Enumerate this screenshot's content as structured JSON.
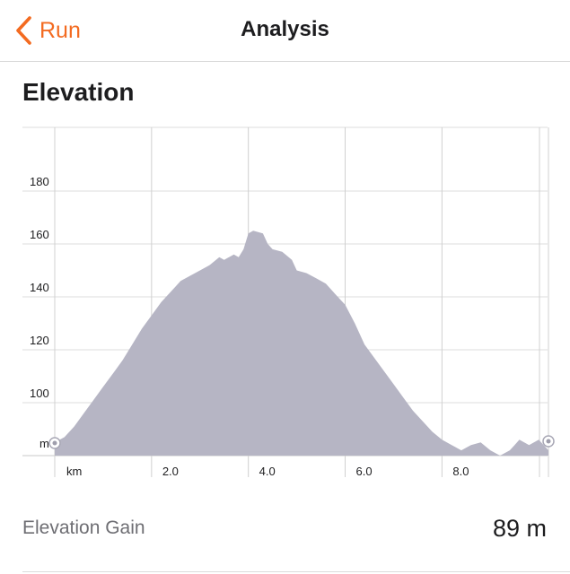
{
  "nav": {
    "back_label": "Run",
    "title": "Analysis",
    "accent_color": "#f36b21",
    "back_icon": "chevron-left-icon"
  },
  "section": {
    "title": "Elevation"
  },
  "chart_data": {
    "type": "area",
    "title": "",
    "xlabel": "km",
    "ylabel": "m",
    "x_unit_label": "km",
    "y_unit_label": "m",
    "xlim": [
      0,
      10.2
    ],
    "ylim": [
      80,
      200
    ],
    "y_ticks": [
      100,
      120,
      140,
      160,
      180
    ],
    "y_tick_labels": [
      "100",
      "120",
      "140",
      "160",
      "180"
    ],
    "x_ticks": [
      2.0,
      4.0,
      6.0,
      8.0
    ],
    "x_tick_labels": [
      "2.0",
      "4.0",
      "6.0",
      "8.0"
    ],
    "grid": true,
    "fill_color": "#b6b5c4",
    "series": [
      {
        "x": [
          0.0,
          0.2,
          0.4,
          0.6,
          0.8,
          1.0,
          1.2,
          1.4,
          1.6,
          1.8,
          2.0,
          2.2,
          2.4,
          2.5,
          2.6,
          2.8,
          3.0,
          3.2,
          3.4,
          3.5,
          3.7,
          3.8,
          3.9,
          4.0,
          4.1,
          4.3,
          4.4,
          4.5,
          4.7,
          4.9,
          5.0,
          5.2,
          5.4,
          5.6,
          5.8,
          6.0,
          6.2,
          6.4,
          6.6,
          6.8,
          7.0,
          7.2,
          7.4,
          7.6,
          7.8,
          8.0,
          8.2,
          8.4,
          8.6,
          8.8,
          9.0,
          9.2,
          9.4,
          9.5,
          9.6,
          9.8,
          10.0,
          10.2
        ],
        "y": [
          85,
          87,
          91,
          96,
          101,
          106,
          111,
          116,
          122,
          128,
          133,
          138,
          142,
          144,
          146,
          148,
          150,
          152,
          155,
          154,
          156,
          155,
          158,
          164,
          165,
          164,
          160,
          158,
          157,
          154,
          150,
          149,
          147,
          145,
          141,
          137,
          130,
          122,
          117,
          112,
          107,
          102,
          97,
          93,
          89,
          86,
          84,
          82,
          84,
          85,
          82,
          80,
          82,
          84,
          86,
          84,
          86,
          82
        ]
      }
    ],
    "start_marker": true,
    "end_marker": true
  },
  "stats": {
    "elevation_gain_label": "Elevation Gain",
    "elevation_gain_value": "89 m"
  }
}
